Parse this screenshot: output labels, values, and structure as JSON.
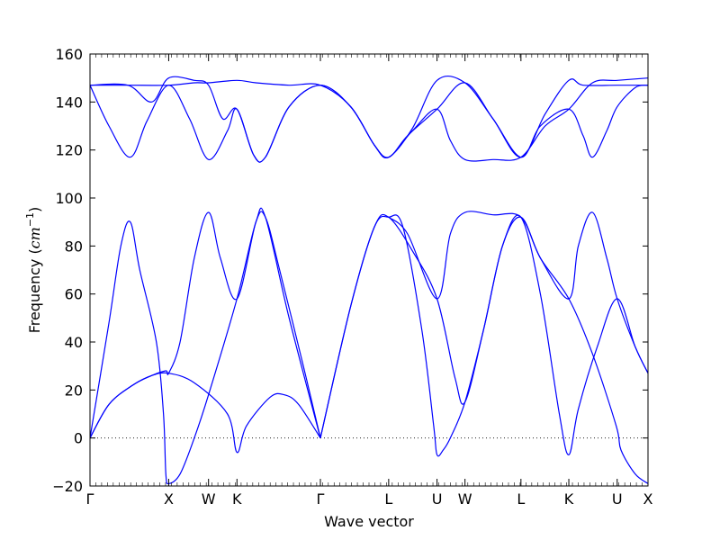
{
  "chart_data": {
    "type": "line",
    "xlabel": "Wave vector",
    "ylabel": "Frequency (",
    "ylabel_math": "cm",
    "ylabel_sup": "−1",
    "ylabel_close": ")",
    "xlim": [
      0,
      11.77
    ],
    "ylim": [
      -20,
      160
    ],
    "yticks": [
      -20,
      0,
      20,
      40,
      60,
      80,
      100,
      120,
      140,
      160
    ],
    "ytick_labels": [
      "−20",
      "0",
      "20",
      "40",
      "60",
      "80",
      "100",
      "120",
      "140",
      "160"
    ],
    "kpoints": [
      {
        "label": "Γ",
        "x": 0.0
      },
      {
        "label": "X",
        "x": 1.66
      },
      {
        "label": "W",
        "x": 2.5
      },
      {
        "label": "K",
        "x": 3.1
      },
      {
        "label": "Γ",
        "x": 4.86
      },
      {
        "label": "L",
        "x": 6.3
      },
      {
        "label": "U",
        "x": 7.32
      },
      {
        "label": "W",
        "x": 7.91
      },
      {
        "label": "L",
        "x": 9.09
      },
      {
        "label": "K",
        "x": 10.1
      },
      {
        "label": "U",
        "x": 11.12
      },
      {
        "label": "X",
        "x": 11.77
      }
    ],
    "zero_line": true,
    "series": [
      {
        "values": [
          [
            0,
            0
          ],
          [
            0.4,
            14
          ],
          [
            0.9,
            22
          ],
          [
            1.3,
            26
          ],
          [
            1.66,
            27
          ],
          [
            2.2,
            23
          ],
          [
            2.9,
            10
          ],
          [
            3.1,
            -6
          ],
          [
            3.3,
            5
          ],
          [
            3.8,
            17
          ],
          [
            4.1,
            18
          ],
          [
            4.4,
            14
          ],
          [
            4.86,
            0
          ]
        ]
      },
      {
        "values": [
          [
            0,
            0
          ],
          [
            0.4,
            14
          ],
          [
            0.9,
            22
          ],
          [
            1.3,
            26
          ],
          [
            1.6,
            28
          ],
          [
            1.66,
            27
          ],
          [
            1.9,
            40
          ],
          [
            2.2,
            75
          ],
          [
            2.5,
            94
          ],
          [
            2.75,
            75
          ],
          [
            3.1,
            58
          ],
          [
            3.5,
            90
          ],
          [
            3.7,
            92
          ],
          [
            4.0,
            70
          ],
          [
            4.5,
            30
          ],
          [
            4.86,
            0
          ]
        ]
      },
      {
        "values": [
          [
            0,
            0
          ],
          [
            0.4,
            48
          ],
          [
            0.65,
            80
          ],
          [
            0.85,
            90
          ],
          [
            1.05,
            70
          ],
          [
            1.4,
            40
          ],
          [
            1.55,
            10
          ],
          [
            1.6,
            -15
          ],
          [
            1.66,
            -19
          ],
          [
            1.9,
            -15
          ],
          [
            2.2,
            0
          ],
          [
            2.5,
            18
          ],
          [
            3.1,
            58
          ],
          [
            3.5,
            90
          ],
          [
            3.7,
            92
          ],
          [
            4.2,
            50
          ],
          [
            4.86,
            0
          ]
        ]
      },
      {
        "values": [
          [
            4.86,
            0
          ],
          [
            5.5,
            55
          ],
          [
            6.0,
            88
          ],
          [
            6.3,
            92
          ],
          [
            6.8,
            78
          ],
          [
            7.32,
            58
          ],
          [
            7.7,
            25
          ],
          [
            7.91,
            15
          ],
          [
            8.3,
            45
          ],
          [
            8.7,
            80
          ],
          [
            9.09,
            92
          ],
          [
            9.5,
            75
          ],
          [
            10.1,
            58
          ],
          [
            10.6,
            35
          ],
          [
            11.1,
            5
          ],
          [
            11.2,
            -5
          ],
          [
            11.5,
            -15
          ],
          [
            11.77,
            -19
          ]
        ]
      },
      {
        "values": [
          [
            4.86,
            0
          ],
          [
            5.5,
            55
          ],
          [
            6.0,
            88
          ],
          [
            6.3,
            92
          ],
          [
            6.6,
            88
          ],
          [
            7.0,
            45
          ],
          [
            7.25,
            5
          ],
          [
            7.32,
            -7
          ],
          [
            7.45,
            -5
          ],
          [
            7.6,
            0
          ],
          [
            7.91,
            15
          ],
          [
            8.3,
            45
          ],
          [
            8.7,
            80
          ],
          [
            9.09,
            92
          ],
          [
            9.5,
            60
          ],
          [
            9.9,
            10
          ],
          [
            10.1,
            -7
          ],
          [
            10.3,
            12
          ],
          [
            10.7,
            38
          ],
          [
            11.12,
            58
          ],
          [
            11.5,
            38
          ],
          [
            11.77,
            27
          ]
        ]
      },
      {
        "values": [
          [
            6.3,
            92
          ],
          [
            6.7,
            85
          ],
          [
            7.32,
            58
          ],
          [
            7.6,
            85
          ],
          [
            7.91,
            94
          ],
          [
            8.5,
            93
          ],
          [
            9.09,
            92
          ],
          [
            9.5,
            75
          ],
          [
            10.1,
            58
          ],
          [
            10.3,
            80
          ],
          [
            10.6,
            94
          ],
          [
            10.9,
            75
          ],
          [
            11.12,
            58
          ],
          [
            11.5,
            38
          ],
          [
            11.77,
            27
          ]
        ]
      },
      {
        "values": [
          [
            0,
            147
          ],
          [
            0.4,
            130
          ],
          [
            0.85,
            117
          ],
          [
            1.2,
            132
          ],
          [
            1.66,
            147
          ],
          [
            2.1,
            133
          ],
          [
            2.5,
            116
          ],
          [
            2.9,
            128
          ],
          [
            3.1,
            137
          ],
          [
            3.45,
            118
          ],
          [
            3.7,
            117
          ],
          [
            4.2,
            138
          ],
          [
            4.86,
            147
          ],
          [
            5.5,
            138
          ],
          [
            6.0,
            122
          ],
          [
            6.3,
            117
          ],
          [
            6.7,
            126
          ],
          [
            7.32,
            137
          ],
          [
            7.91,
            148
          ],
          [
            8.5,
            133
          ],
          [
            9.09,
            117
          ],
          [
            9.5,
            130
          ],
          [
            10.1,
            137
          ],
          [
            10.4,
            126
          ],
          [
            10.6,
            117
          ],
          [
            10.9,
            128
          ],
          [
            11.12,
            138
          ],
          [
            11.5,
            146
          ],
          [
            11.77,
            147
          ]
        ]
      },
      {
        "values": [
          [
            0,
            147
          ],
          [
            0.8,
            147
          ],
          [
            1.66,
            147
          ],
          [
            2.2,
            148
          ],
          [
            2.5,
            148
          ],
          [
            3.1,
            149
          ],
          [
            3.5,
            148
          ],
          [
            4.2,
            147
          ],
          [
            4.86,
            147
          ],
          [
            5.5,
            138
          ],
          [
            6.0,
            122
          ],
          [
            6.3,
            117
          ],
          [
            6.8,
            129
          ],
          [
            7.32,
            149
          ],
          [
            7.91,
            148
          ],
          [
            8.5,
            133
          ],
          [
            9.09,
            117
          ],
          [
            9.6,
            135
          ],
          [
            10.1,
            149
          ],
          [
            10.4,
            147
          ],
          [
            11.12,
            147
          ],
          [
            11.77,
            147
          ]
        ]
      },
      {
        "values": [
          [
            0,
            147
          ],
          [
            0.8,
            147
          ],
          [
            1.3,
            140
          ],
          [
            1.66,
            150
          ],
          [
            2.2,
            149
          ],
          [
            2.5,
            147
          ],
          [
            2.8,
            133
          ],
          [
            3.1,
            137
          ],
          [
            3.45,
            118
          ],
          [
            3.7,
            117
          ],
          [
            4.2,
            138
          ],
          [
            4.86,
            147
          ],
          [
            5.5,
            138
          ],
          [
            6.0,
            122
          ],
          [
            6.3,
            117
          ],
          [
            6.8,
            128
          ],
          [
            7.32,
            137
          ],
          [
            7.6,
            124
          ],
          [
            7.91,
            116
          ],
          [
            8.5,
            116
          ],
          [
            9.09,
            117
          ],
          [
            9.6,
            130
          ],
          [
            10.1,
            137
          ],
          [
            10.6,
            148
          ],
          [
            11.12,
            149
          ],
          [
            11.77,
            150
          ]
        ]
      }
    ],
    "color": "#0000ff"
  }
}
